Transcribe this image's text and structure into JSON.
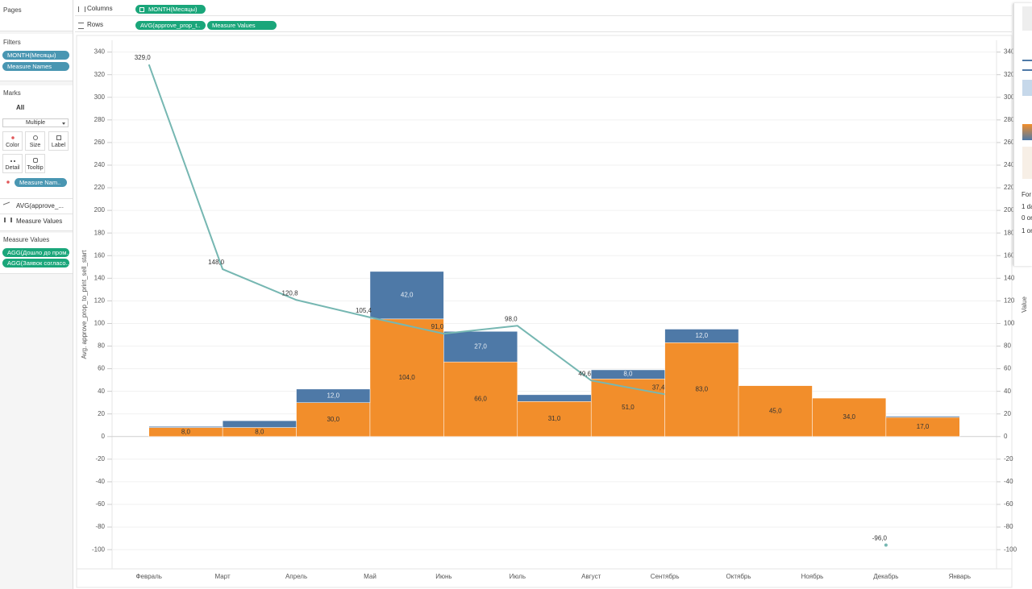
{
  "ui": {
    "pages": "Pages",
    "columns_label": "Columns",
    "columns_pills": [
      "MONTH(Месяцы)"
    ],
    "rows_label": "Rows",
    "rows_pills": [
      "AVG(approve_prop_t..",
      "Measure Values"
    ],
    "filters": {
      "title": "Filters",
      "pills": [
        "MONTH(Месяцы)",
        "Measure Names"
      ]
    },
    "marks": {
      "title": "Marks",
      "all": "All",
      "mark_type": "Multiple",
      "buttons": [
        "Color",
        "Size",
        "Label",
        "Detail",
        "Tooltip"
      ],
      "pill": "Measure Nam..",
      "layers": [
        "AVG(approve_...",
        "Measure Values"
      ]
    },
    "measure_values": {
      "title": "Measure Values",
      "pills": [
        "AGG(Дошло до пром..",
        "AGG(Заявок согласо.."
      ]
    },
    "side": [
      "For l",
      "1 da",
      "0 or",
      "1 or"
    ]
  },
  "chart_data": {
    "type": "bar",
    "y_label": "Avg. approve_prop_to_print_sell_start",
    "y2_label": "Value",
    "categories": [
      "Февраль",
      "Март",
      "Апрель",
      "Май",
      "Июнь",
      "Июль",
      "Август",
      "Сентябрь",
      "Октябрь",
      "Ноябрь",
      "Декабрь",
      "Январь"
    ],
    "series": [
      {
        "color": "#f28e2b",
        "values": [
          8,
          8,
          30,
          104,
          66,
          31,
          51,
          83,
          45,
          34,
          17,
          null
        ],
        "value_labels": [
          "8,0",
          "8,0",
          "30,0",
          "104,0",
          "66,0",
          "31,0",
          "51,0",
          "83,0",
          "45,0",
          "34,0",
          "17,0",
          null
        ]
      },
      {
        "color": "#4e79a7",
        "values": [
          1,
          6,
          12,
          42,
          27,
          6,
          8,
          12,
          null,
          null,
          1,
          null
        ],
        "value_labels": [
          null,
          null,
          "12,0",
          "42,0",
          "27,0",
          null,
          "8,0",
          "12,0",
          null,
          null,
          null,
          null
        ]
      },
      {
        "type": "line",
        "color": "#76b7b2",
        "values": [
          329,
          148,
          120.8,
          105.4,
          91,
          98,
          49.6,
          37.4,
          null,
          null,
          -96,
          null
        ],
        "value_labels": [
          "329,0",
          "148,0",
          "120,8",
          "105,4",
          "91,0",
          "98,0",
          "49,6",
          "37,4",
          null,
          null,
          "-96,0",
          null
        ]
      }
    ],
    "ylim": [
      -117,
      349
    ],
    "yticks": [
      -100,
      -80,
      -60,
      -40,
      -20,
      0,
      20,
      40,
      60,
      80,
      100,
      120,
      140,
      160,
      180,
      200,
      220,
      240,
      260,
      280,
      300,
      320,
      340
    ],
    "y2lim": [
      -117,
      349
    ],
    "y2ticks": [
      -100,
      -80,
      -60,
      -40,
      -20,
      0,
      20,
      40,
      60,
      80,
      100,
      120,
      140,
      160,
      180,
      200,
      220,
      240,
      260,
      280,
      300,
      320,
      340
    ],
    "grid": true
  }
}
